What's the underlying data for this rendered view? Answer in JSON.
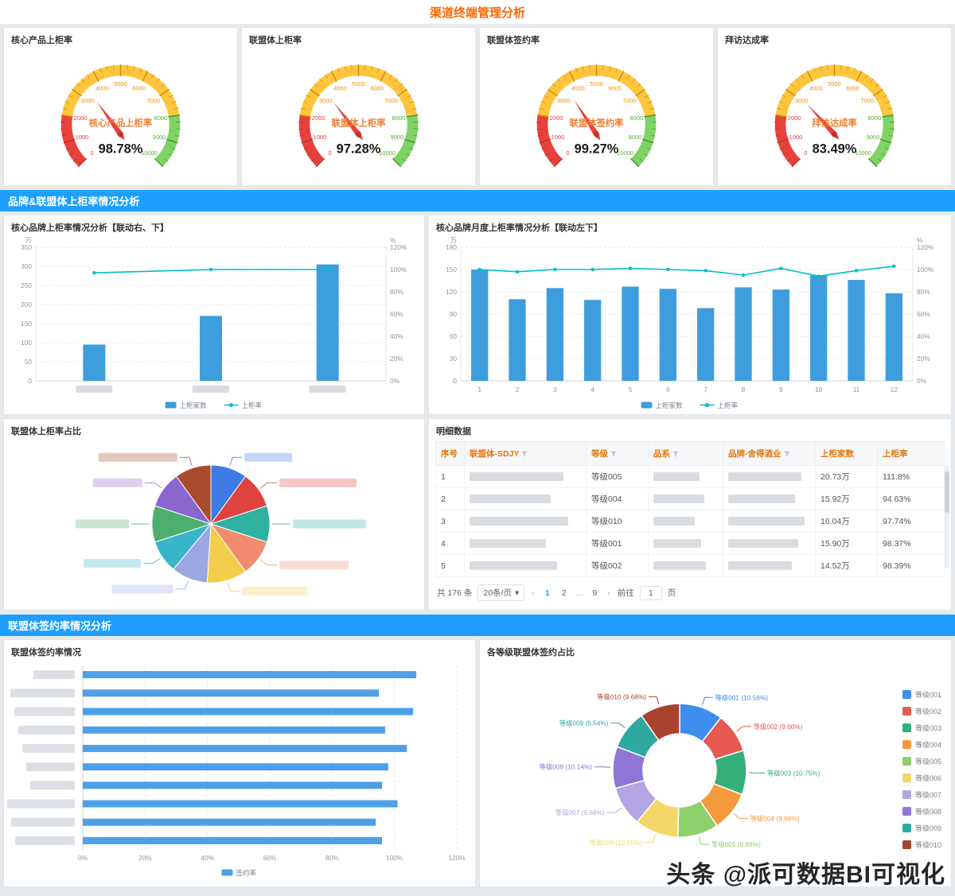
{
  "page": {
    "title": "渠道终端管理分析"
  },
  "watermark": {
    "text": "头条 @派可数据BI可视化"
  },
  "sections": [
    {
      "title": "品牌&联盟体上柜率情况分析"
    },
    {
      "title": "联盟体签约率情况分析"
    }
  ],
  "colors": {
    "accent_blue": "#1e9fff",
    "title_orange": "#ff6600",
    "bar_blue": "#3e9edd",
    "line_teal": "#00bfc4",
    "hbar_blue": "#4d9fe8",
    "table_header_orange": "#e2770d",
    "gauge_red": "#e8413c",
    "gauge_yellow": "#ffc53d",
    "gauge_green": "#7fd264"
  },
  "chart_data": [
    {
      "type": "gauge",
      "min": 0,
      "max": 10000,
      "tick_labels": [
        0,
        1000,
        2000,
        3000,
        4000,
        5000,
        6000,
        7000,
        8000,
        9000,
        10000
      ],
      "zones": [
        {
          "from": 0,
          "to": 2000,
          "color": "#e8413c"
        },
        {
          "from": 2000,
          "to": 8000,
          "color": "#ffc53d"
        },
        {
          "from": 8000,
          "to": 10000,
          "color": "#7fd264"
        }
      ],
      "items": [
        {
          "title": "核心产品上柜率",
          "label": "核心产品上柜率",
          "value": "98.78%"
        },
        {
          "title": "联盟体上柜率",
          "label": "联盟体上柜率",
          "value": "97.28%"
        },
        {
          "title": "联盟体签约率",
          "label": "联盟体签约率",
          "value": "99.27%"
        },
        {
          "title": "拜访达成率",
          "label": "拜访达成率",
          "value": "83.49%"
        }
      ]
    },
    {
      "type": "bar",
      "title": "核心品牌上柜率情况分析【联动右、下】",
      "categories": [
        "",
        "",
        ""
      ],
      "x_labels_blurred": true,
      "series": [
        {
          "name": "上柜家数",
          "type": "bar",
          "axis": "left",
          "values": [
            95,
            170,
            305
          ]
        },
        {
          "name": "上柜率",
          "type": "line",
          "axis": "right",
          "values": [
            97,
            100,
            100
          ]
        }
      ],
      "left_axis": {
        "unit": "万",
        "max": 350,
        "step": 50
      },
      "right_axis": {
        "unit": "%",
        "max": 120,
        "step": 20
      },
      "grid": "dashed",
      "legend_position": "bottom"
    },
    {
      "type": "bar",
      "title": "核心品牌月度上柜率情况分析【联动左下】",
      "categories": [
        "1",
        "2",
        "3",
        "4",
        "5",
        "6",
        "7",
        "8",
        "9",
        "10",
        "11",
        "12"
      ],
      "x_labels_blurred": false,
      "series": [
        {
          "name": "上柜家数",
          "type": "bar",
          "axis": "left",
          "values": [
            150,
            110,
            125,
            109,
            127,
            124,
            98,
            126,
            123,
            142,
            136,
            118
          ]
        },
        {
          "name": "上柜率",
          "type": "line",
          "axis": "right",
          "values": [
            100,
            98,
            100,
            100,
            101,
            100,
            99,
            95,
            101,
            94,
            99,
            103
          ]
        }
      ],
      "left_axis": {
        "unit": "万",
        "max": 180,
        "step": 30
      },
      "right_axis": {
        "unit": "%",
        "max": 120,
        "step": 20
      },
      "grid": "dashed",
      "legend_position": "bottom"
    },
    {
      "type": "pie",
      "title": "联盟体上柜率占比",
      "labels_blurred": true,
      "slices": [
        {
          "value": 10,
          "color": "#3d7be5"
        },
        {
          "value": 10,
          "color": "#df4340"
        },
        {
          "value": 10,
          "color": "#2eb1a0"
        },
        {
          "value": 10,
          "color": "#f08b6e"
        },
        {
          "value": 11,
          "color": "#f2ce4c"
        },
        {
          "value": 10,
          "color": "#9aa7e0"
        },
        {
          "value": 9,
          "color": "#38b6c9"
        },
        {
          "value": 10,
          "color": "#4caf6e"
        },
        {
          "value": 10,
          "color": "#8a67ce"
        },
        {
          "value": 10,
          "color": "#a84b2f"
        }
      ]
    },
    {
      "type": "bar",
      "orientation": "horizontal",
      "title": "联盟体签约率情况",
      "y_labels_blurred": true,
      "series": [
        {
          "name": "签约率",
          "values": [
            107,
            95,
            106,
            97,
            104,
            98,
            96,
            101,
            94,
            96
          ]
        }
      ],
      "x_axis": {
        "unit": "%",
        "max": 120,
        "step": 20
      },
      "grid": "dashed",
      "legend_position": "bottom"
    },
    {
      "type": "pie",
      "donut": true,
      "title": "各等级联盟体签约占比",
      "legend_position": "right",
      "slices": [
        {
          "label": "等级001",
          "pct": 10.56,
          "pct_text": "10.56%",
          "color": "#3e8ef0"
        },
        {
          "label": "等级002",
          "pct": 9.6,
          "pct_text": "9.60%",
          "color": "#e75a52"
        },
        {
          "label": "等级003",
          "pct": 10.75,
          "pct_text": "10.75%",
          "color": "#35b07b"
        },
        {
          "label": "等级004",
          "pct": 9.66,
          "pct_text": "9.66%",
          "color": "#f59a3c"
        },
        {
          "label": "等级005",
          "pct": 9.86,
          "pct_text": "9.86%",
          "color": "#8ed06c"
        },
        {
          "label": "等级006",
          "pct": 10.55,
          "pct_text": "10.55%",
          "color": "#f3d867"
        },
        {
          "label": "等级007",
          "pct": 9.66,
          "pct_text": "9.66%",
          "color": "#b3a5e3"
        },
        {
          "label": "等级008",
          "pct": 10.14,
          "pct_text": "10.14%",
          "color": "#8f76d6"
        },
        {
          "label": "等级009",
          "pct": 9.54,
          "pct_text": "9.54%",
          "color": "#2fa8a0"
        },
        {
          "label": "等级010",
          "pct": 9.68,
          "pct_text": "9.68%",
          "color": "#a9432e"
        }
      ]
    }
  ],
  "detail_table": {
    "title": "明细数据",
    "headers": [
      {
        "label": "序号",
        "filter": false
      },
      {
        "label": "联盟体-SDJY",
        "filter": true
      },
      {
        "label": "等级",
        "filter": true
      },
      {
        "label": "品系",
        "filter": true
      },
      {
        "label": "品牌-舍得酒业",
        "filter": true
      },
      {
        "label": "上柜家数",
        "filter": false
      },
      {
        "label": "上柜率",
        "filter": false
      }
    ],
    "rows": [
      {
        "no": "1",
        "grade": "等级005",
        "count": "20.73万",
        "rate": "111.8%"
      },
      {
        "no": "2",
        "grade": "等级004",
        "count": "15.92万",
        "rate": "94.63%"
      },
      {
        "no": "3",
        "grade": "等级010",
        "count": "16.04万",
        "rate": "97.74%"
      },
      {
        "no": "4",
        "grade": "等级001",
        "count": "15.90万",
        "rate": "98.37%"
      },
      {
        "no": "5",
        "grade": "等级002",
        "count": "14.52万",
        "rate": "98.39%"
      }
    ],
    "pagination": {
      "total": "共 176 条",
      "page_size": "20条/页",
      "size_caret": "▾",
      "prev": "‹",
      "next": "›",
      "pages": [
        "1",
        "2",
        "…",
        "9"
      ],
      "current": "1",
      "goto_label": "前往",
      "goto_value": "1",
      "page_label": "页"
    }
  }
}
